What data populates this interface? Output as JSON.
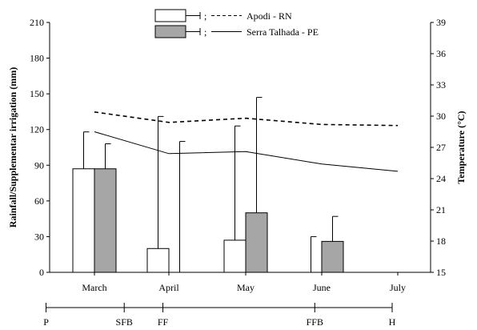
{
  "chart_data": {
    "type": "bar+line",
    "categories": [
      "March",
      "April",
      "May",
      "June",
      "July"
    ],
    "ylabel": "Rainfall/Supplementar irrigation (mm)",
    "y2label": "Temperature (°C)",
    "ylim": [
      0,
      210
    ],
    "yticks": [
      "0",
      "30",
      "60",
      "90",
      "120",
      "150",
      "180",
      "210"
    ],
    "y2lim": [
      15,
      39
    ],
    "y2ticks": [
      "15",
      "18",
      "21",
      "24",
      "27",
      "30",
      "33",
      "36",
      "39"
    ],
    "legend": {
      "placement": "top-center",
      "series": [
        {
          "name": "Apodi - RN",
          "bar_color": "#ffffff",
          "line_style": "dashed"
        },
        {
          "name": "Serra Talhada - PE",
          "bar_color": "#a6a6a6",
          "line_style": "solid"
        }
      ]
    },
    "bar_series": [
      {
        "name": "Apodi - RN",
        "values": [
          87,
          20,
          27,
          0,
          0
        ],
        "error_upper": [
          118,
          131,
          123,
          30,
          null
        ],
        "color": "#ffffff"
      },
      {
        "name": "Serra Talhada - PE",
        "values": [
          87,
          0,
          50,
          26,
          0
        ],
        "error_upper": [
          108,
          110,
          147,
          47,
          null
        ],
        "color": "#a6a6a6"
      }
    ],
    "temperature_series": [
      {
        "name": "Apodi - RN",
        "x": [
          0,
          1,
          2,
          3,
          4
        ],
        "values": [
          30.4,
          29.4,
          29.8,
          29.2,
          29.1
        ],
        "style": "dashed"
      },
      {
        "name": "Serra Talhada - PE",
        "x": [
          0,
          1,
          2,
          3,
          4
        ],
        "values": [
          28.5,
          26.4,
          26.6,
          25.4,
          24.7
        ],
        "style": "solid"
      }
    ],
    "phenology": {
      "labels": [
        "P",
        "SFB",
        "FF",
        "FFB",
        "H"
      ],
      "positions_month_index": [
        -0.65,
        0.4,
        0.92,
        2.96,
        4.0
      ]
    },
    "grid": false
  }
}
